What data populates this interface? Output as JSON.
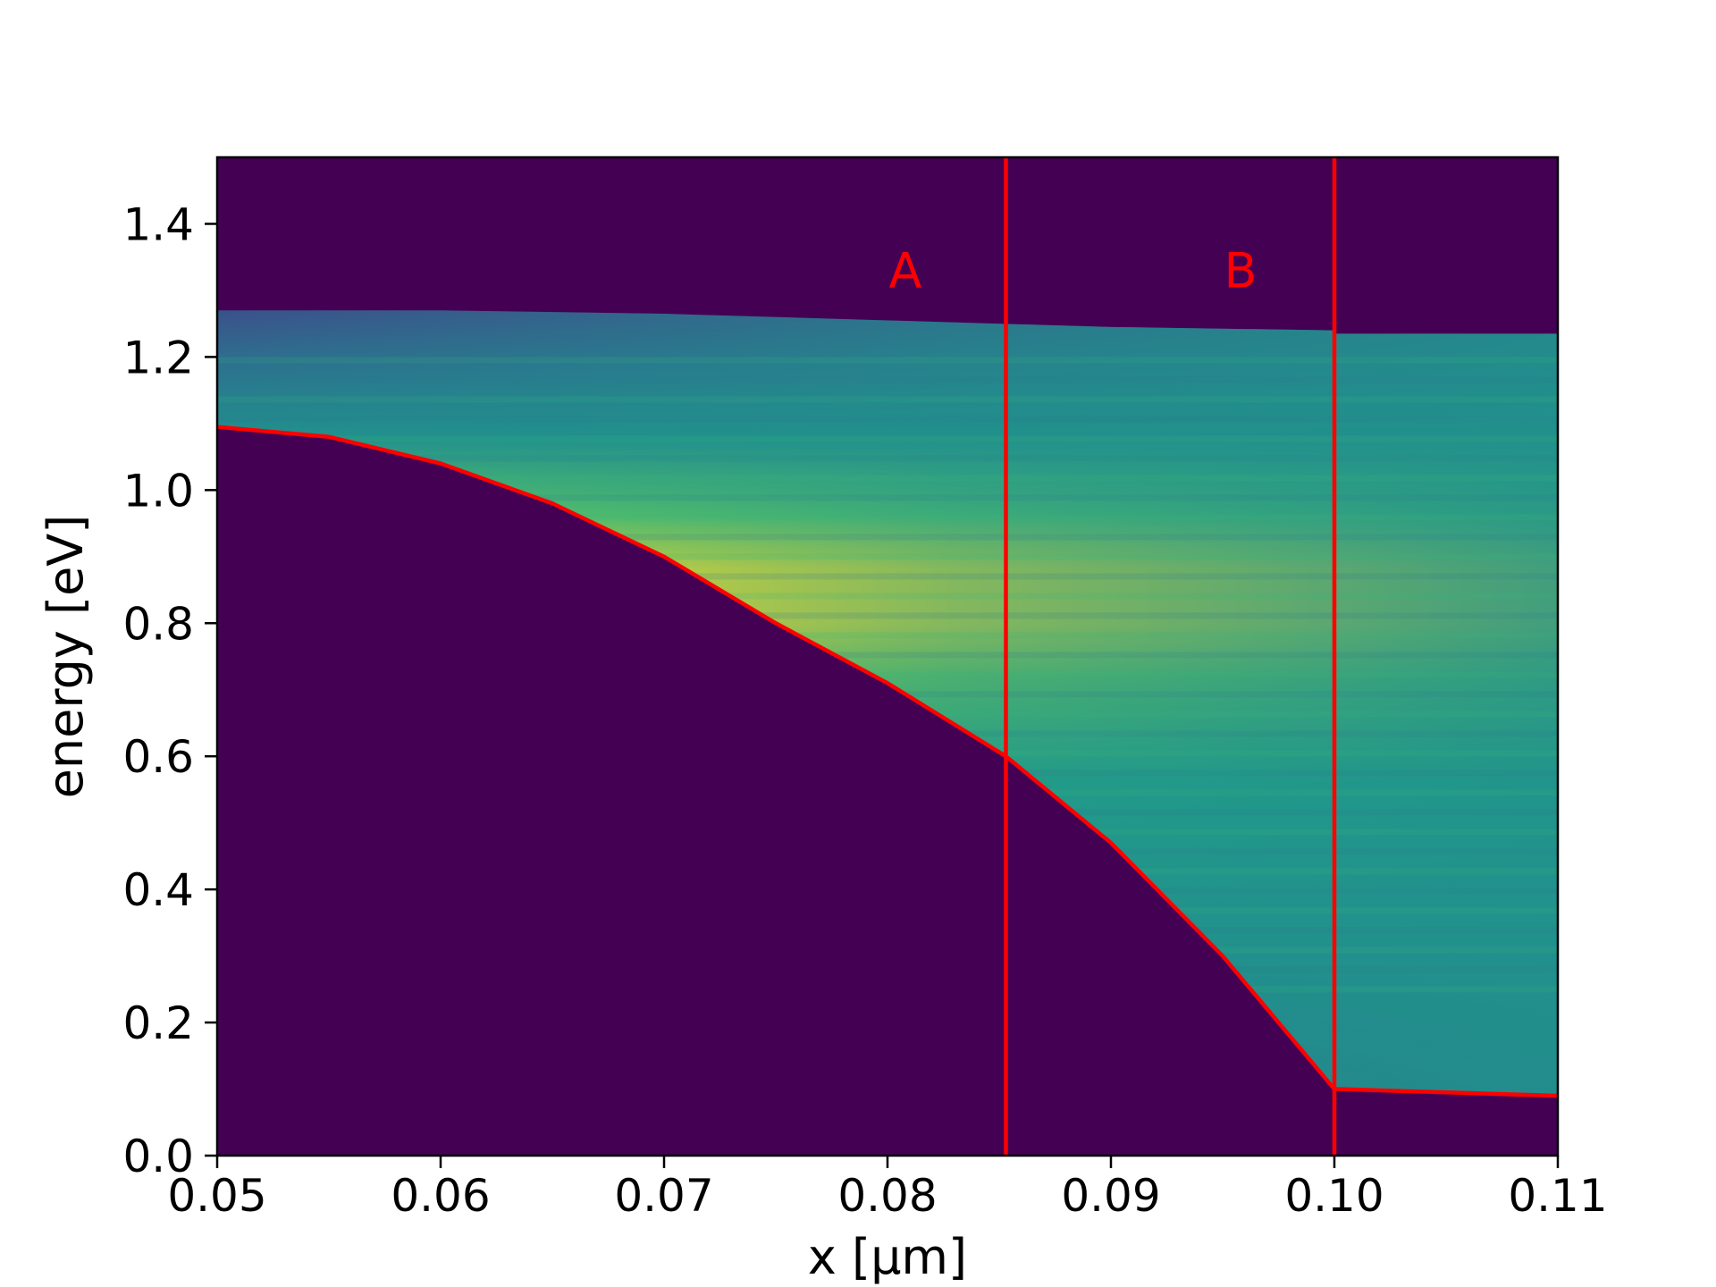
{
  "chart_data": {
    "type": "heatmap",
    "title": "",
    "xlabel": "x [µm]",
    "ylabel": "energy [eV]",
    "xlim": [
      0.05,
      0.11
    ],
    "ylim": [
      0.0,
      1.5
    ],
    "x_ticks": [
      "0.05",
      "0.06",
      "0.07",
      "0.08",
      "0.09",
      "0.10",
      "0.11"
    ],
    "y_ticks": [
      "0.0",
      "0.2",
      "0.4",
      "0.6",
      "0.8",
      "1.0",
      "1.2",
      "1.4"
    ],
    "colormap": "viridis",
    "grid": false,
    "band_edge_curve": {
      "color": "#ff0000",
      "x": [
        0.05,
        0.055,
        0.06,
        0.065,
        0.07,
        0.075,
        0.08,
        0.0853,
        0.09,
        0.095,
        0.1,
        0.1001,
        0.11
      ],
      "y": [
        1.095,
        1.08,
        1.04,
        0.98,
        0.9,
        0.8,
        0.71,
        0.6,
        0.47,
        0.3,
        0.1,
        0.1,
        0.09
      ]
    },
    "upper_edge": {
      "x": [
        0.05,
        0.06,
        0.07,
        0.08,
        0.09,
        0.1,
        0.1001,
        0.11
      ],
      "y": [
        1.27,
        1.27,
        1.265,
        1.255,
        1.245,
        1.24,
        1.235,
        1.235
      ]
    },
    "region_boundaries": [
      {
        "label": "A",
        "x": 0.0853,
        "label_x": 0.0808,
        "label_y": 1.33
      },
      {
        "label": "B",
        "x": 0.1,
        "label_x": 0.0958,
        "label_y": 1.33
      }
    ],
    "boundary_color": "#ff0000"
  }
}
